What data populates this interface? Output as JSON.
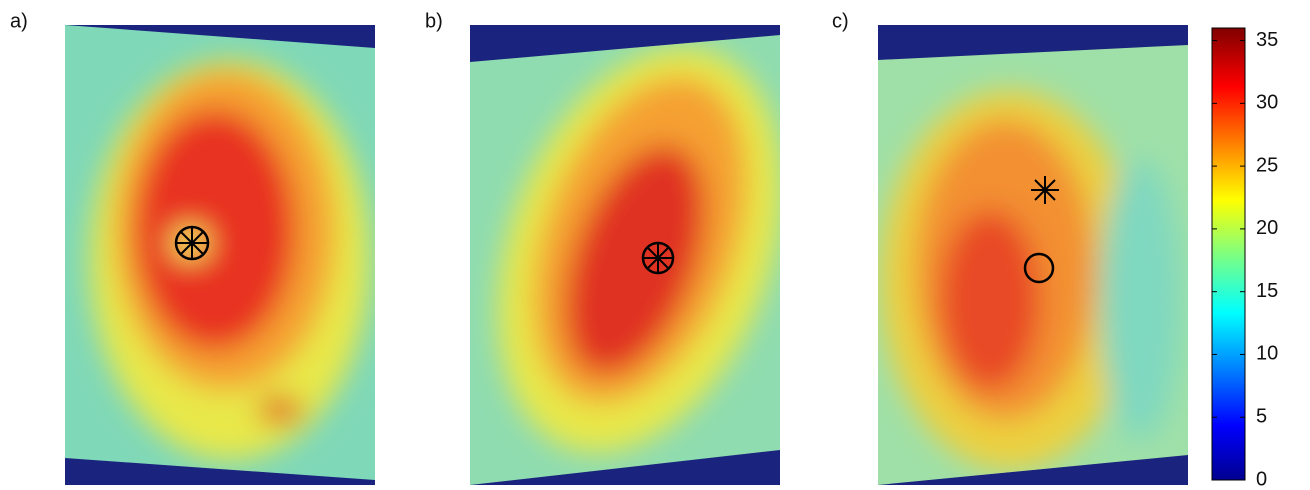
{
  "panels": [
    {
      "label": "a)"
    },
    {
      "label": "b)"
    },
    {
      "label": "c)"
    }
  ],
  "colorbar": {
    "lim": [
      0,
      36
    ],
    "ticks": [
      0,
      5,
      10,
      15,
      20,
      25,
      30,
      35
    ]
  }
}
